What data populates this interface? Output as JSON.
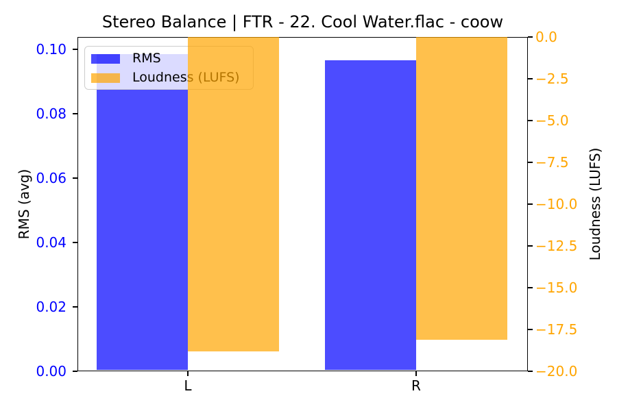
{
  "chart_data": {
    "type": "bar",
    "title": "Stereo Balance | FTR - 22. Cool Water.flac - coow",
    "categories": [
      "L",
      "R"
    ],
    "series": [
      {
        "name": "RMS",
        "axis": "left",
        "color": "rgba(0,0,255,0.7)",
        "values": [
          0.0985,
          0.0965
        ]
      },
      {
        "name": "Loudness (LUFS)",
        "axis": "right",
        "color": "rgba(255,165,0,0.7)",
        "values": [
          -18.8,
          -18.1
        ]
      }
    ],
    "left_axis": {
      "label": "RMS (avg)",
      "color": "#0000ff",
      "range": [
        0,
        0.1038
      ],
      "ticks": [
        {
          "label": "0.00",
          "value": 0.0
        },
        {
          "label": "0.02",
          "value": 0.02
        },
        {
          "label": "0.04",
          "value": 0.04
        },
        {
          "label": "0.06",
          "value": 0.06
        },
        {
          "label": "0.08",
          "value": 0.08
        },
        {
          "label": "0.10",
          "value": 0.1
        }
      ]
    },
    "right_axis": {
      "label": "Loudness (LUFS)",
      "color": "#ffa500",
      "range": [
        -20,
        0
      ],
      "ticks": [
        {
          "label": "0.0",
          "value": 0
        },
        {
          "label": "−2.5",
          "value": -2.5
        },
        {
          "label": "−5.0",
          "value": -5
        },
        {
          "label": "−7.5",
          "value": -7.5
        },
        {
          "label": "−10.0",
          "value": -10
        },
        {
          "label": "−12.5",
          "value": -12.5
        },
        {
          "label": "−15.0",
          "value": -15
        },
        {
          "label": "−17.5",
          "value": -17.5
        },
        {
          "label": "−20.0",
          "value": -20
        }
      ]
    },
    "legend": {
      "position": "upper left",
      "entries": [
        {
          "label": "RMS",
          "swatch": "rgba(0,0,255,0.7)"
        },
        {
          "label": "Loudness (LUFS)",
          "swatch": "rgba(255,165,0,0.7)"
        }
      ]
    },
    "grid": false
  }
}
